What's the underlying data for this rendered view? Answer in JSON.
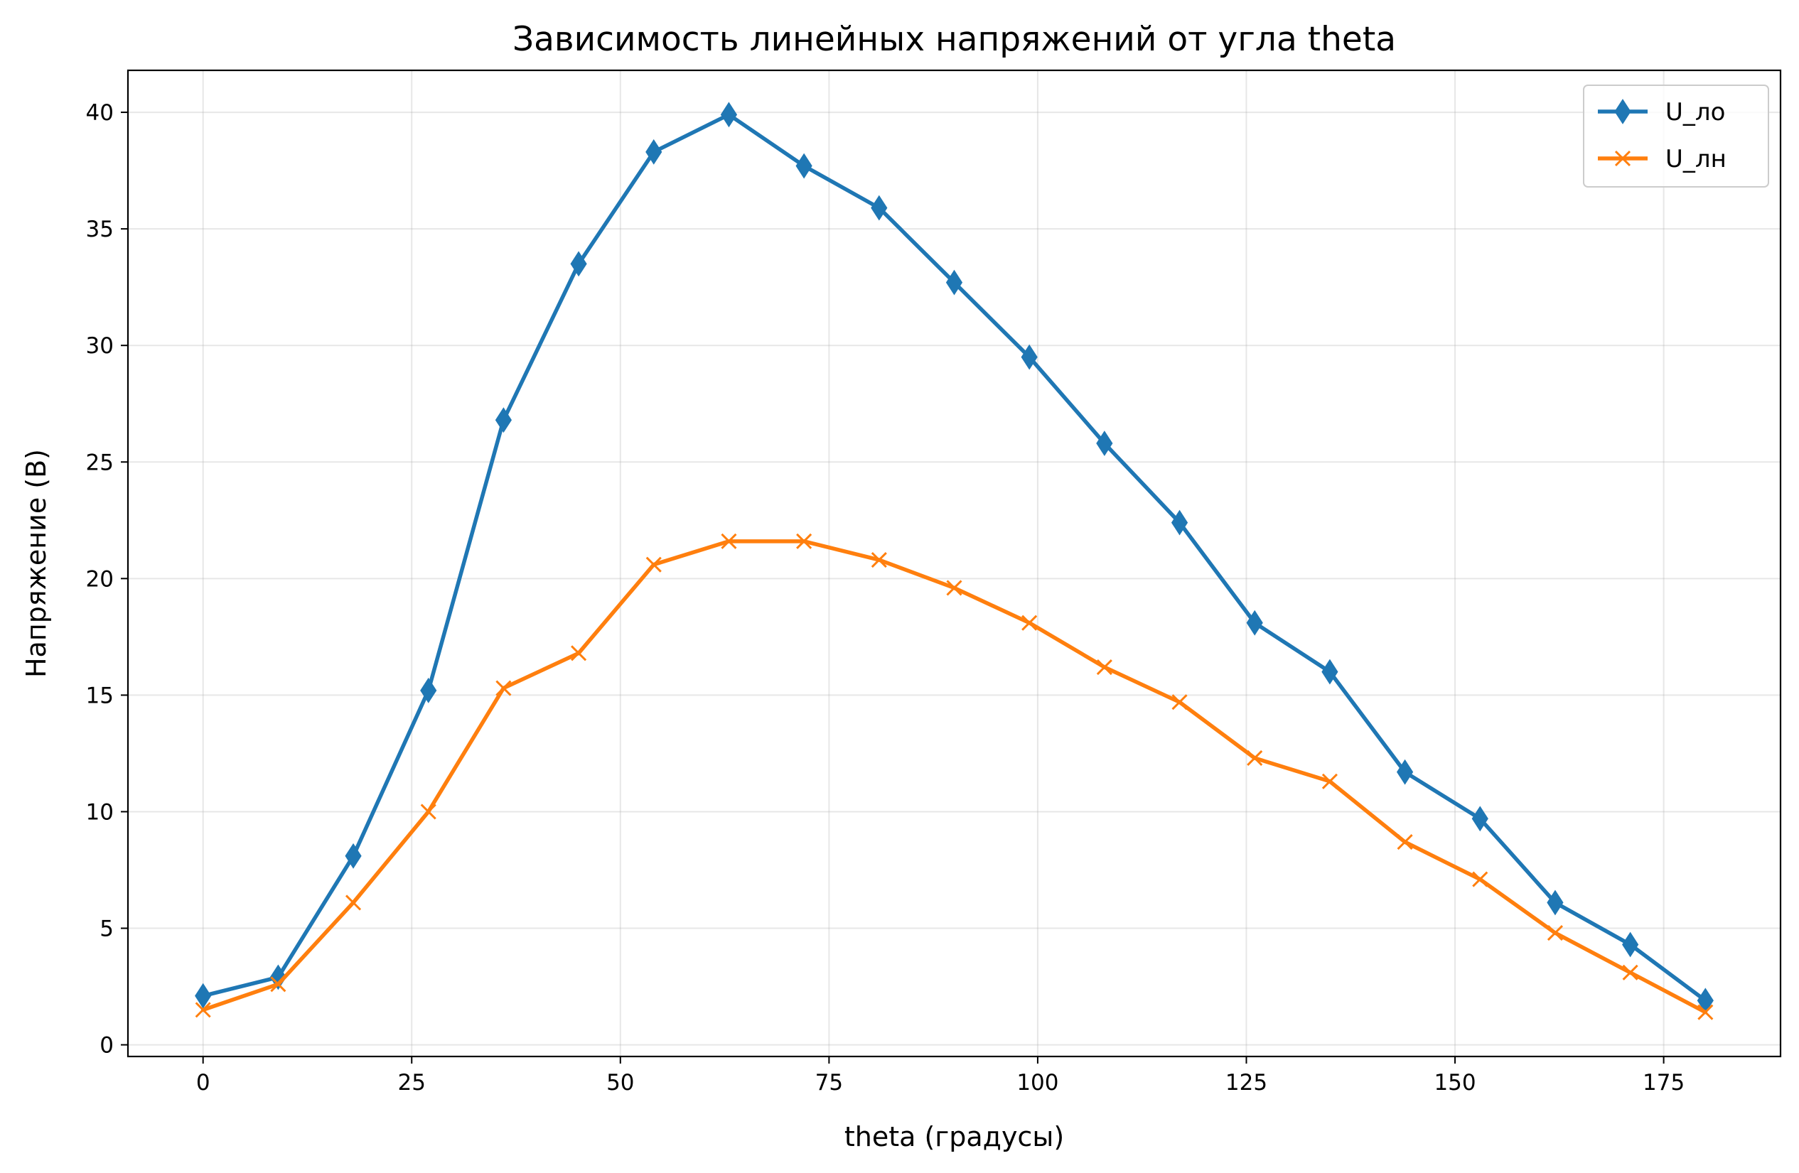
{
  "chart_data": {
    "type": "line",
    "title": "Зависимость линейных напряжений от угла theta",
    "xlabel": "theta (градусы)",
    "ylabel": "Напряжение (В)",
    "xlim": [
      -9,
      189
    ],
    "ylim": [
      -0.5,
      41.8
    ],
    "x_ticks": [
      0,
      25,
      50,
      75,
      100,
      125,
      150,
      175
    ],
    "y_ticks": [
      0,
      5,
      10,
      15,
      20,
      25,
      30,
      35,
      40
    ],
    "grid": true,
    "legend_position": "top-right",
    "x": [
      0,
      9,
      18,
      27,
      36,
      45,
      54,
      63,
      72,
      81,
      90,
      99,
      108,
      117,
      126,
      135,
      144,
      153,
      162,
      171,
      180
    ],
    "series": [
      {
        "name": "U_ло",
        "color": "#1f77b4",
        "marker": "diamond",
        "values": [
          2.1,
          2.9,
          8.1,
          15.2,
          26.8,
          33.5,
          38.3,
          39.9,
          37.7,
          35.9,
          32.7,
          29.5,
          25.8,
          22.4,
          18.1,
          16.0,
          11.7,
          9.7,
          6.1,
          4.3,
          1.9
        ]
      },
      {
        "name": "U_лн",
        "color": "#ff7f0e",
        "marker": "x",
        "values": [
          1.5,
          2.6,
          6.1,
          10.0,
          15.3,
          16.8,
          20.6,
          21.6,
          21.6,
          20.8,
          19.6,
          18.1,
          16.2,
          14.7,
          12.3,
          11.3,
          8.7,
          7.1,
          4.8,
          3.1,
          1.4
        ]
      }
    ]
  }
}
